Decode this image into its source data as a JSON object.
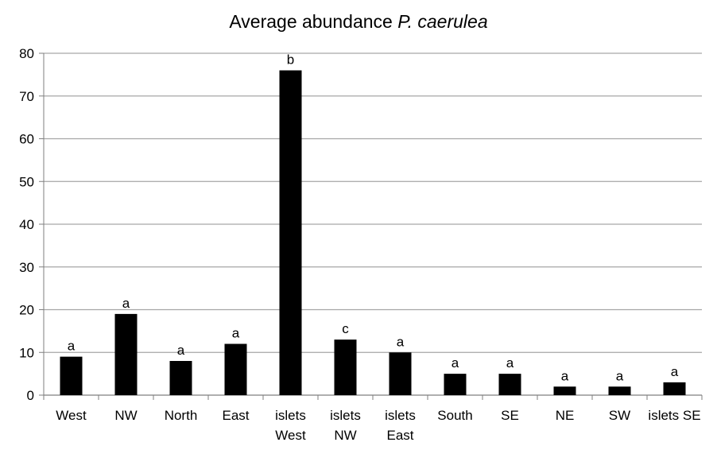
{
  "chart_data": {
    "type": "bar",
    "title": "Average abundance",
    "title_italic": "P. caerulea",
    "xlabel": "",
    "ylabel": "",
    "ylim": [
      0,
      80
    ],
    "yticks": [
      0,
      10,
      20,
      30,
      40,
      50,
      60,
      70,
      80
    ],
    "grid": true,
    "legend": "none",
    "bar_color": "#000000",
    "grid_color": "#a6a6a6",
    "categories": [
      [
        "West"
      ],
      [
        "NW"
      ],
      [
        "North"
      ],
      [
        "East"
      ],
      [
        "islets",
        "West"
      ],
      [
        "islets",
        "NW"
      ],
      [
        "islets",
        "East"
      ],
      [
        "South"
      ],
      [
        "SE"
      ],
      [
        "NE"
      ],
      [
        "SW"
      ],
      [
        "islets SE"
      ]
    ],
    "values": [
      9,
      19,
      8,
      12,
      76,
      13,
      10,
      5,
      5,
      2,
      2,
      3
    ],
    "data_labels": [
      "a",
      "a",
      "a",
      "a",
      "b",
      "c",
      "a",
      "a",
      "a",
      "a",
      "a",
      "a"
    ]
  }
}
